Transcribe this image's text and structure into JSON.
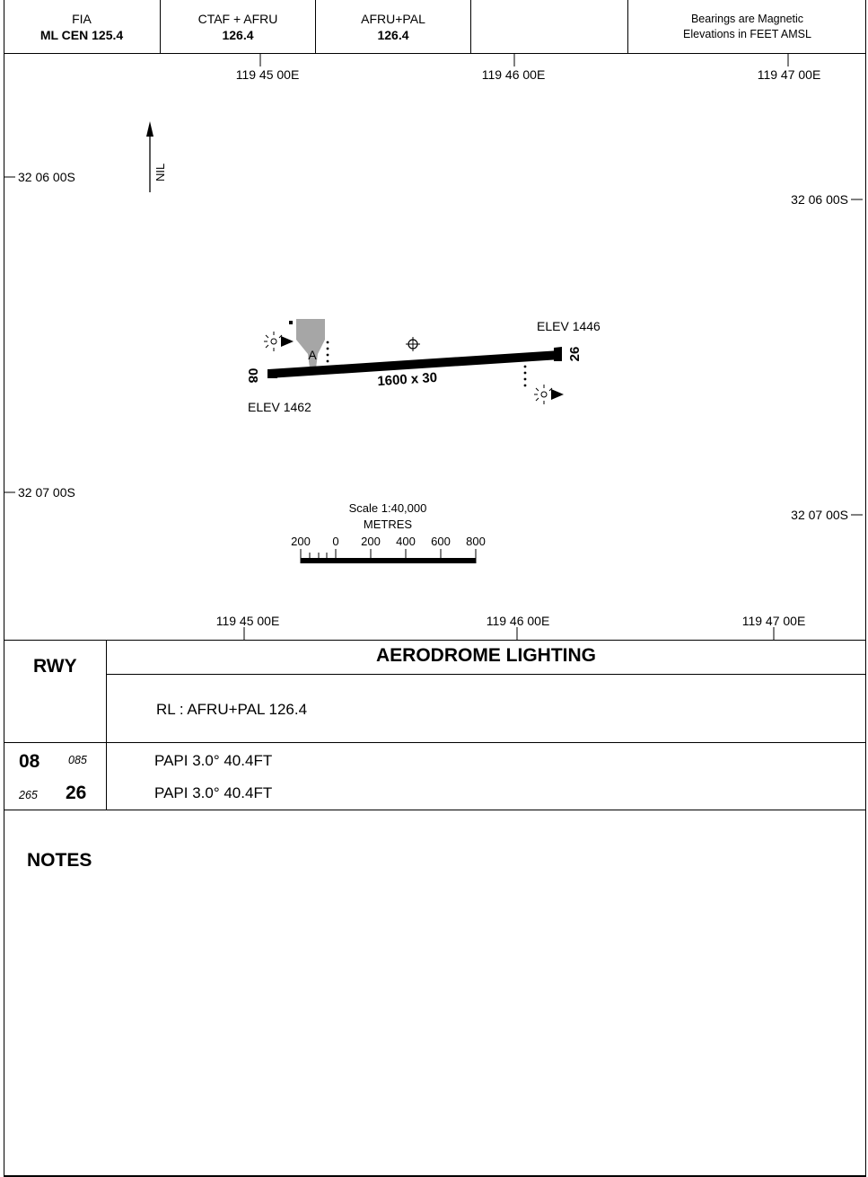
{
  "header": {
    "fia_label": "FIA",
    "fia_value": "ML CEN 125.4",
    "ctaf_label": "CTAF + AFRU",
    "ctaf_value": "126.4",
    "afru_label": "AFRU+PAL",
    "afru_value": "126.4",
    "bearings_note": "Bearings are Magnetic",
    "elevations_note": "Elevations in FEET AMSL"
  },
  "map": {
    "top_longitudes": [
      "119 45 00E",
      "119 46 00E",
      "119 47 00E"
    ],
    "bottom_longitudes": [
      "119 45 00E",
      "119 46 00E",
      "119 47 00E"
    ],
    "left_latitudes": [
      "32 06 00S",
      "32 07 00S"
    ],
    "right_latitudes": [
      "32 06 00S",
      "32 07 00S"
    ],
    "north_arrow_label": "NIL",
    "runway": {
      "dimensions": "1600 x 30",
      "end_west": "08",
      "end_east": "26",
      "elev_west": "ELEV 1462",
      "elev_east": "ELEV 1446"
    },
    "apron_label": "A",
    "scale": {
      "title": "Scale 1:40,000",
      "unit": "METRES",
      "ticks": [
        "200",
        "0",
        "200",
        "400",
        "600",
        "800"
      ]
    },
    "icons": [
      "aerodrome-reference-point-icon",
      "wind-indicator-icon",
      "windsock-icon",
      "papi-lights-icon"
    ]
  },
  "lighting": {
    "rwy_header": "RWY",
    "title": "AERODROME LIGHTING",
    "rl_info": "RL : AFRU+PAL 126.4",
    "rows": [
      {
        "rwy": "08",
        "heading": "085",
        "papi": "PAPI  3.0°  40.4FT"
      },
      {
        "rwy": "26",
        "heading": "265",
        "papi": "PAPI  3.0°  40.4FT"
      }
    ]
  },
  "notes": {
    "title": "NOTES"
  }
}
